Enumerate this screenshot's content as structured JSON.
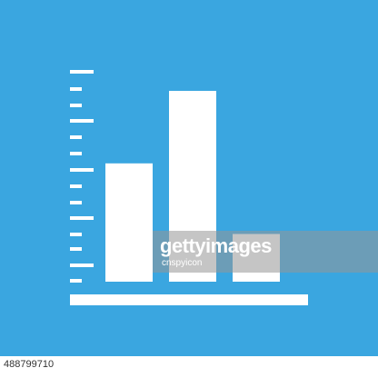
{
  "colors": {
    "background": "#3aa6e0",
    "foreground": "#ffffff",
    "watermark": "#969696"
  },
  "icon": {
    "name": "bar-chart-icon",
    "bar_levels": [
      0.62,
      1.0,
      0.25
    ]
  },
  "watermark": {
    "brand": "gettyimages",
    "credit": "cnspyicon"
  },
  "footer": {
    "image_number": "488799710"
  }
}
